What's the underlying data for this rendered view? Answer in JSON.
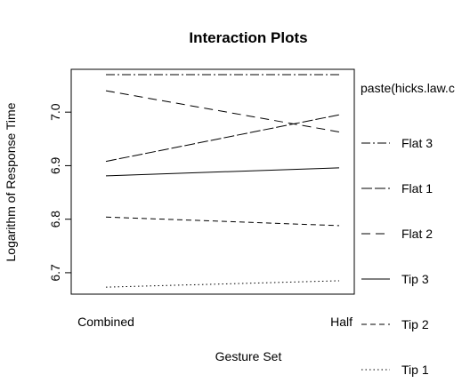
{
  "chart_data": {
    "type": "line",
    "title": "Interaction Plots",
    "xlabel": "Gesture Set",
    "ylabel": "Logarithm of Response Time",
    "categories": [
      "Combined",
      "Half"
    ],
    "ylim": [
      6.66,
      7.08
    ],
    "yticks": [
      "6.7",
      "6.8",
      "6.9",
      "7.0"
    ],
    "legend_title": "paste(hicks.law.c",
    "legend_position": "right",
    "grid": false,
    "series": [
      {
        "name": "Flat 3",
        "dash": "dotdash-long",
        "values": [
          7.07,
          7.07
        ]
      },
      {
        "name": "Flat 1",
        "dash": "longdash-tight",
        "values": [
          6.908,
          6.995
        ]
      },
      {
        "name": "Flat 2",
        "dash": "longdash",
        "values": [
          7.04,
          6.963
        ]
      },
      {
        "name": "Tip 3",
        "dash": "solid",
        "values": [
          6.881,
          6.896
        ]
      },
      {
        "name": "Tip 2",
        "dash": "dashed",
        "values": [
          6.804,
          6.788
        ]
      },
      {
        "name": "Tip 1",
        "dash": "dotted",
        "values": [
          6.673,
          6.685
        ]
      }
    ]
  }
}
